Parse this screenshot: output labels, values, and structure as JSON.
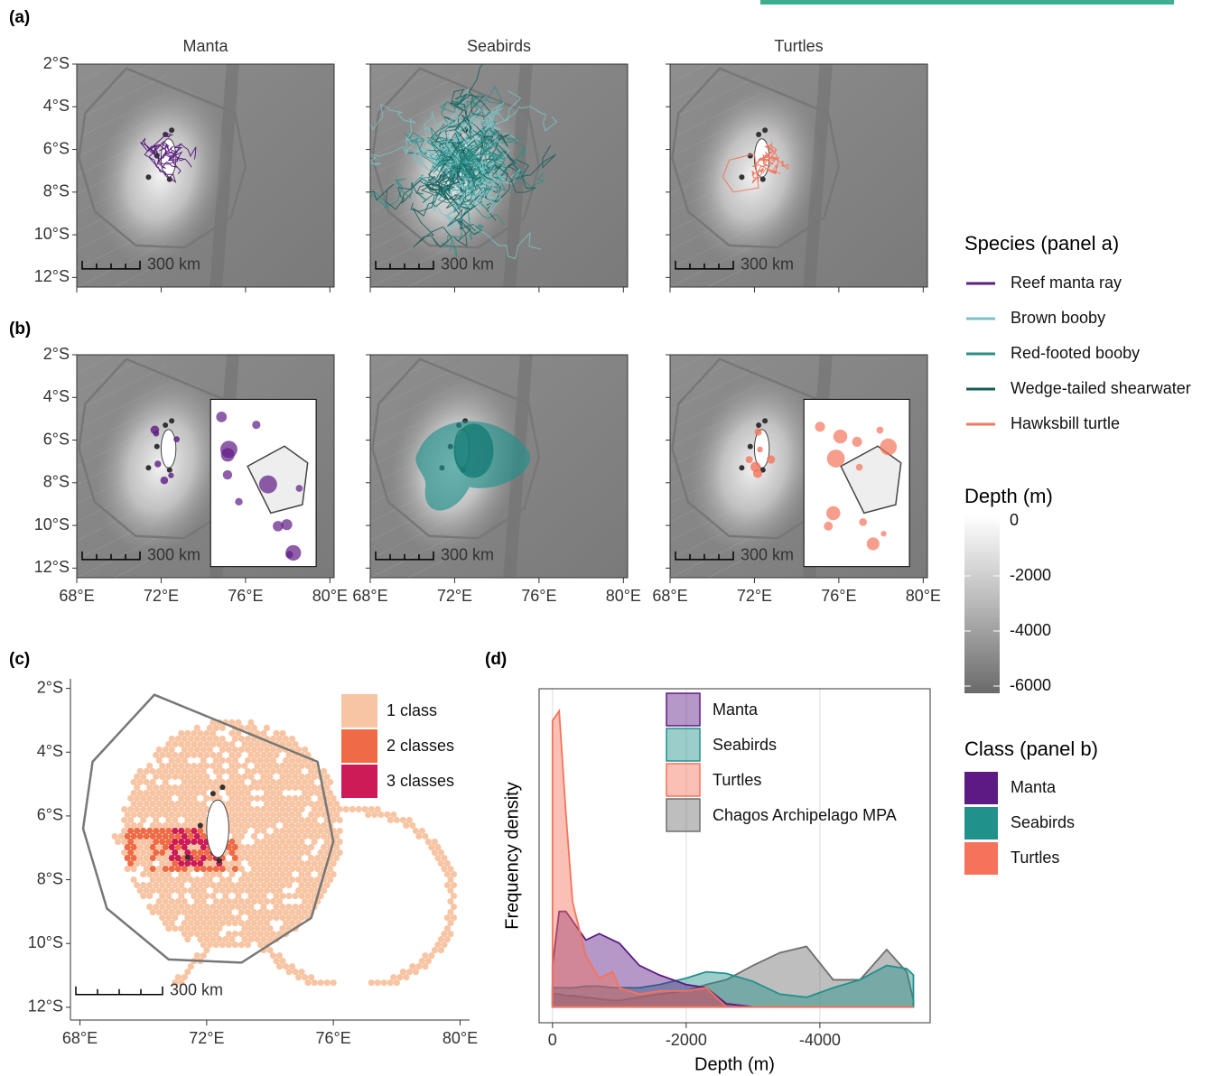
{
  "chart_data": [
    {
      "type": "map",
      "panel_label": "(a)",
      "titles": [
        "Manta",
        "Seabirds",
        "Turtles"
      ],
      "scale_label": "300 km",
      "xlim": [
        68,
        80.2
      ],
      "ylim": [
        -12.45,
        -2
      ],
      "yticks": [
        {
          "value": -2,
          "label": "2°S"
        },
        {
          "value": -4,
          "label": "4°S"
        },
        {
          "value": -6,
          "label": "6°S"
        },
        {
          "value": -8,
          "label": "8°S"
        },
        {
          "value": -10,
          "label": "10°S"
        },
        {
          "value": -12,
          "label": "12°S"
        }
      ],
      "legend": {
        "title": "Species (panel a)",
        "series": [
          {
            "name": "Reef manta ray",
            "color": "#5b1f80"
          },
          {
            "name": "Brown booby",
            "color": "#7cc2c4"
          },
          {
            "name": "Red-footed booby",
            "color": "#2a8f8a"
          },
          {
            "name": "Wedge-tailed shearwater",
            "color": "#155e5a"
          },
          {
            "name": "Hawksbill turtle",
            "color": "#f07860"
          }
        ]
      }
    },
    {
      "type": "map",
      "panel_label": "(b)",
      "scale_label": "300 km",
      "xlim": [
        68,
        80.2
      ],
      "ylim": [
        -12.45,
        -2
      ],
      "xticks": [
        {
          "value": 68,
          "label": "68°E"
        },
        {
          "value": 72,
          "label": "72°E"
        },
        {
          "value": 76,
          "label": "76°E"
        },
        {
          "value": 80,
          "label": "80°E"
        }
      ],
      "yticks": [
        {
          "value": -2,
          "label": "2°S"
        },
        {
          "value": -4,
          "label": "4°S"
        },
        {
          "value": -6,
          "label": "6°S"
        },
        {
          "value": -8,
          "label": "8°S"
        },
        {
          "value": -10,
          "label": "10°S"
        },
        {
          "value": -12,
          "label": "12°S"
        }
      ],
      "legend": {
        "title": "Class (panel b)",
        "series": [
          {
            "name": "Manta",
            "color": "#5e1a84"
          },
          {
            "name": "Seabirds",
            "color": "#21918c"
          },
          {
            "name": "Turtles",
            "color": "#f4735a"
          }
        ]
      }
    },
    {
      "type": "map",
      "panel_label": "(c)",
      "scale_label": "300 km",
      "xlim": [
        67.7,
        80.3
      ],
      "ylim": [
        -12.4,
        -1.7
      ],
      "xticks": [
        {
          "value": 68,
          "label": "68°E"
        },
        {
          "value": 72,
          "label": "72°E"
        },
        {
          "value": 76,
          "label": "76°E"
        },
        {
          "value": 80,
          "label": "80°E"
        }
      ],
      "yticks": [
        {
          "value": -2,
          "label": "2°S"
        },
        {
          "value": -4,
          "label": "4°S"
        },
        {
          "value": -6,
          "label": "6°S"
        },
        {
          "value": -8,
          "label": "8°S"
        },
        {
          "value": -10,
          "label": "10°S"
        },
        {
          "value": -12,
          "label": "12°S"
        }
      ],
      "legend": {
        "series": [
          {
            "name": "1 class",
            "color": "#f7c5a4"
          },
          {
            "name": "2 classes",
            "color": "#ef6b46"
          },
          {
            "name": "3 classes",
            "color": "#cc1b56"
          }
        ]
      }
    },
    {
      "type": "area",
      "panel_label": "(d)",
      "xlabel": "Depth (m)",
      "ylabel": "Frequency density",
      "xlim": [
        200,
        -5650
      ],
      "ylim": [
        -0.05,
        1
      ],
      "xticks": [
        0,
        -2000,
        -4000
      ],
      "x": [
        0,
        -100,
        -200,
        -300,
        -500,
        -700,
        -900,
        -1000,
        -1300,
        -1600,
        -2000,
        -2300,
        -2600,
        -3000,
        -3400,
        -3800,
        -4200,
        -4600,
        -5000,
        -5300,
        -5400
      ],
      "series": [
        {
          "name": "Manta",
          "color": "#5e1a84",
          "values": [
            0.13,
            0.3,
            0.3,
            0.27,
            0.21,
            0.23,
            0.21,
            0.2,
            0.13,
            0.1,
            0.07,
            0.06,
            0.01,
            0,
            0,
            0,
            0,
            0,
            0,
            0,
            0
          ]
        },
        {
          "name": "Seabirds",
          "color": "#21918c",
          "values": [
            0.06,
            0.06,
            0.06,
            0.06,
            0.065,
            0.065,
            0.06,
            0.06,
            0.06,
            0.07,
            0.09,
            0.11,
            0.105,
            0.08,
            0.04,
            0.03,
            0.06,
            0.085,
            0.13,
            0.12,
            0.1
          ]
        },
        {
          "name": "Turtles",
          "color": "#f4735a",
          "values": [
            0.9,
            0.93,
            0.61,
            0.33,
            0.16,
            0.09,
            0.11,
            0.06,
            0.04,
            0.05,
            0.05,
            0.06,
            0,
            0,
            0,
            0,
            0,
            0,
            0,
            0,
            0
          ]
        },
        {
          "name": "Chagos Archipelago MPA",
          "color": "#6e6e6e",
          "values": [
            0.04,
            0.04,
            0.035,
            0.035,
            0.03,
            0.025,
            0.02,
            0.02,
            0.03,
            0.04,
            0.05,
            0.07,
            0.085,
            0.13,
            0.17,
            0.19,
            0.085,
            0.085,
            0.18,
            0.11,
            0.02
          ]
        }
      ]
    }
  ],
  "depth_legend": {
    "title": "Depth (m)",
    "ticks": [
      0,
      -2000,
      -4000,
      -6000
    ]
  }
}
